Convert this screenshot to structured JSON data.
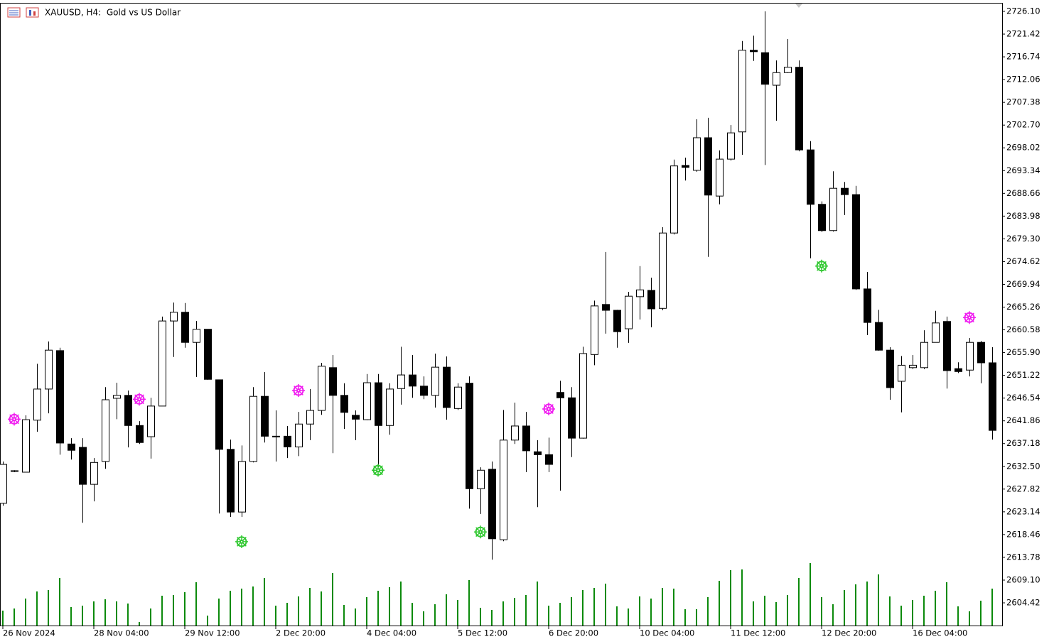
{
  "chart_data": {
    "type": "candlestick",
    "title": "XAUUSD, H4:  Gold vs US Dollar",
    "categories": [
      "26 Nov 2024",
      null,
      null,
      null,
      null,
      null,
      null,
      null,
      "28 Nov 04:00",
      null,
      null,
      null,
      null,
      null,
      null,
      null,
      "29 Nov 12:00",
      null,
      null,
      null,
      null,
      null,
      null,
      null,
      "2 Dec 20:00",
      null,
      null,
      null,
      null,
      null,
      null,
      null,
      "4 Dec 04:00",
      null,
      null,
      null,
      null,
      null,
      null,
      null,
      "5 Dec 12:00",
      null,
      null,
      null,
      null,
      null,
      null,
      null,
      "6 Dec 20:00",
      null,
      null,
      null,
      null,
      null,
      null,
      null,
      "10 Dec 04:00",
      null,
      null,
      null,
      null,
      null,
      null,
      null,
      "11 Dec 12:00",
      null,
      null,
      null,
      null,
      null,
      null,
      null,
      "12 Dec 20:00",
      null,
      null,
      null,
      null,
      null,
      null,
      null,
      "16 Dec 04:00",
      null,
      null,
      null,
      null,
      null,
      null,
      null
    ],
    "open": [
      2624.9,
      2631.6,
      2631.3,
      2642.0,
      2648.4,
      2656.3,
      2637.1,
      2636.4,
      2628.8,
      2633.5,
      2646.5,
      2647.1,
      2640.9,
      2638.6,
      2644.9,
      2662.4,
      2664.2,
      2658.0,
      2660.7,
      2650.3,
      2636.0,
      2623.1,
      2633.5,
      2646.9,
      2638.7,
      2638.7,
      2636.5,
      2641.2,
      2644.0,
      2652.8,
      2647.1,
      2643.0,
      2642.1,
      2649.7,
      2640.9,
      2648.5,
      2651.3,
      2649.0,
      2647.1,
      2652.9,
      2644.4,
      2649.6,
      2627.9,
      2631.9,
      2617.4,
      2637.9,
      2640.8,
      2635.5,
      2634.9,
      2647.7,
      2646.6,
      2638.3,
      2655.5,
      2665.8,
      2664.6,
      2660.8,
      2667.4,
      2668.7,
      2665.0,
      2680.5,
      2694.4,
      2693.4,
      2700.1,
      2688.1,
      2695.7,
      2701.3,
      2718.1,
      2717.6,
      2710.9,
      2713.5,
      2714.6,
      2697.6,
      2686.4,
      2681.0,
      2689.7,
      2688.4,
      2669.0,
      2662.1,
      2656.4,
      2650.0,
      2652.8,
      2652.8,
      2658.0,
      2662.3,
      2652.6,
      2652.3,
      2658.0,
      2653.8
    ],
    "high": [
      2633.5,
      2631.7,
      2643.0,
      2653.6,
      2658.2,
      2656.9,
      2638.3,
      2638.3,
      2634.2,
      2648.8,
      2649.7,
      2648.1,
      2641.8,
      2646.6,
      2663.3,
      2666.2,
      2666.1,
      2662.4,
      2660.7,
      2650.3,
      2638.0,
      2636.8,
      2648.8,
      2651.9,
      2644.0,
      2640.8,
      2643.7,
      2648.4,
      2653.8,
      2655.4,
      2649.6,
      2644.0,
      2651.5,
      2651.5,
      2649.6,
      2657.1,
      2655.4,
      2651.0,
      2655.7,
      2655.1,
      2649.6,
      2651.0,
      2632.3,
      2633.5,
      2644.1,
      2645.6,
      2643.7,
      2637.9,
      2638.4,
      2650.1,
      2648.8,
      2657.1,
      2666.6,
      2676.6,
      2664.7,
      2668.4,
      2673.7,
      2671.3,
      2681.7,
      2695.6,
      2696.0,
      2703.9,
      2704.2,
      2697.5,
      2702.7,
      2720.0,
      2721.1,
      2726.1,
      2716.0,
      2720.4,
      2716.0,
      2699.4,
      2687.0,
      2693.2,
      2691.0,
      2690.2,
      2672.5,
      2664.7,
      2657.0,
      2655.2,
      2655.4,
      2660.5,
      2664.5,
      2663.3,
      2653.9,
      2658.9,
      2658.3,
      2657.0
    ],
    "low": [
      2624.4,
      2631.3,
      2631.3,
      2639.6,
      2643.4,
      2634.9,
      2633.9,
      2620.9,
      2625.3,
      2632.0,
      2642.2,
      2636.4,
      2637.1,
      2634.1,
      2644.9,
      2655.0,
      2656.9,
      2650.9,
      2650.3,
      2622.8,
      2622.1,
      2622.1,
      2633.3,
      2637.4,
      2633.5,
      2634.2,
      2634.6,
      2637.9,
      2643.1,
      2635.2,
      2640.2,
      2637.9,
      2642.0,
      2632.3,
      2639.0,
      2645.2,
      2646.6,
      2646.3,
      2644.6,
      2642.1,
      2644.1,
      2623.8,
      2622.7,
      2613.3,
      2617.1,
      2637.1,
      2631.3,
      2624.1,
      2631.3,
      2627.5,
      2634.4,
      2638.2,
      2653.3,
      2659.8,
      2656.9,
      2657.9,
      2662.7,
      2661.1,
      2664.6,
      2680.2,
      2691.3,
      2693.1,
      2675.6,
      2686.4,
      2695.4,
      2696.6,
      2715.9,
      2694.5,
      2703.6,
      2713.4,
      2697.3,
      2675.3,
      2680.7,
      2680.8,
      2684.2,
      2668.8,
      2659.5,
      2656.3,
      2646.2,
      2643.6,
      2652.5,
      2652.5,
      2658.0,
      2648.5,
      2651.7,
      2651.0,
      2649.6,
      2638.0
    ],
    "close": [
      2632.9,
      2631.6,
      2642.1,
      2648.4,
      2656.4,
      2637.3,
      2635.8,
      2628.8,
      2633.3,
      2646.2,
      2647.1,
      2640.9,
      2637.4,
      2644.9,
      2662.4,
      2664.2,
      2658.0,
      2660.7,
      2650.4,
      2636.0,
      2623.1,
      2633.5,
      2646.9,
      2638.7,
      2638.6,
      2636.5,
      2641.2,
      2644.0,
      2653.1,
      2647.1,
      2643.6,
      2642.2,
      2649.7,
      2640.9,
      2648.4,
      2651.3,
      2649.0,
      2647.1,
      2652.9,
      2644.6,
      2648.8,
      2627.9,
      2631.7,
      2617.6,
      2637.9,
      2640.8,
      2635.7,
      2634.9,
      2632.9,
      2646.6,
      2638.3,
      2655.7,
      2665.5,
      2664.6,
      2660.2,
      2667.5,
      2668.8,
      2664.9,
      2680.5,
      2694.3,
      2694.0,
      2700.1,
      2688.3,
      2695.7,
      2701.1,
      2718.1,
      2717.8,
      2711.1,
      2713.5,
      2714.6,
      2697.6,
      2686.4,
      2681.0,
      2689.7,
      2688.4,
      2669.0,
      2662.1,
      2656.4,
      2648.7,
      2653.3,
      2653.3,
      2658.0,
      2662.0,
      2652.2,
      2652.0,
      2658.0,
      2653.8,
      2639.9
    ],
    "volume": [
      21,
      24,
      38,
      48,
      50,
      67,
      26,
      28,
      34,
      37,
      34,
      31,
      5,
      24,
      42,
      43,
      47,
      61,
      14,
      38,
      49,
      52,
      55,
      67,
      28,
      32,
      41,
      53,
      48,
      74,
      29,
      24,
      40,
      49,
      54,
      62,
      32,
      20,
      30,
      44,
      36,
      64,
      25,
      22,
      34,
      39,
      43,
      62,
      28,
      32,
      40,
      50,
      53,
      59,
      27,
      24,
      41,
      38,
      53,
      52,
      23,
      23,
      40,
      63,
      78,
      79,
      34,
      42,
      33,
      43,
      67,
      88,
      40,
      30,
      50,
      58,
      62,
      72,
      41,
      28,
      36,
      42,
      49,
      61,
      27,
      20,
      35,
      52
    ],
    "volume_color": "#0b8a0b",
    "up_color": "#ffffff",
    "down_color": "#000000",
    "markers": [
      {
        "color": "#f01ef0",
        "values": [
          null,
          2642.2,
          null,
          null,
          null,
          null,
          null,
          null,
          null,
          null,
          null,
          null,
          2646.3,
          null,
          null,
          null,
          null,
          null,
          null,
          null,
          null,
          null,
          null,
          null,
          null,
          null,
          2648.1,
          null,
          null,
          null,
          null,
          null,
          null,
          null,
          null,
          null,
          null,
          null,
          null,
          null,
          null,
          null,
          null,
          null,
          null,
          null,
          null,
          null,
          2644.3,
          null,
          null,
          null,
          null,
          null,
          null,
          null,
          null,
          null,
          null,
          null,
          null,
          null,
          null,
          null,
          null,
          null,
          null,
          null,
          null,
          null,
          null,
          null,
          null,
          null,
          null,
          null,
          null,
          null,
          null,
          null,
          null,
          null,
          null,
          null,
          null,
          2663.1,
          null,
          null
        ]
      },
      {
        "color": "#32c832",
        "values": [
          null,
          null,
          null,
          null,
          null,
          null,
          null,
          null,
          null,
          null,
          null,
          null,
          null,
          null,
          null,
          null,
          null,
          null,
          null,
          null,
          null,
          2617.0,
          null,
          null,
          null,
          null,
          null,
          null,
          null,
          null,
          null,
          null,
          null,
          2631.7,
          null,
          null,
          null,
          null,
          null,
          null,
          null,
          null,
          2619.0,
          null,
          null,
          null,
          null,
          null,
          null,
          null,
          null,
          null,
          null,
          null,
          null,
          null,
          null,
          null,
          null,
          null,
          null,
          null,
          null,
          null,
          null,
          null,
          null,
          null,
          null,
          null,
          null,
          null,
          2673.7,
          null,
          null,
          null,
          null,
          null,
          null,
          null,
          null,
          null,
          null,
          null,
          null,
          null,
          null,
          null
        ]
      }
    ],
    "ylim": [
      2599.75,
      2727.85
    ],
    "yticks": [
      {
        "value": 2726.1,
        "label": "2726.10"
      },
      2721.42,
      2716.74,
      2712.06,
      2707.38,
      {
        "value": 2702.7,
        "label": "2702.70"
      },
      2698.02,
      2693.34,
      2688.66,
      2683.98,
      {
        "value": 2679.3,
        "label": "2679.30"
      },
      2674.62,
      2669.94,
      2665.26,
      2660.58,
      {
        "value": 2655.9,
        "label": "2655.90"
      },
      2651.22,
      2646.54,
      2641.86,
      2637.18,
      {
        "value": 2632.5,
        "label": "2632.50"
      },
      2627.82,
      2623.14,
      2618.46,
      2613.78,
      {
        "value": 2609.1,
        "label": "2609.10"
      },
      2604.42
    ],
    "grid": false
  }
}
